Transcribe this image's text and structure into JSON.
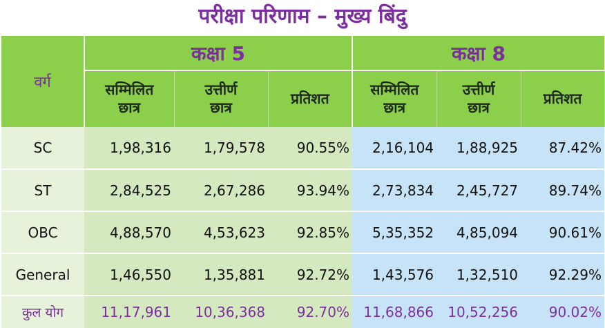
{
  "title": "परीक्षा परिणाम – मुख्य बिंदु",
  "header": {
    "category_label": "वर्ग",
    "class5_label": "कक्षा 5",
    "class8_label": "कक्षा 8",
    "col_appeared_line1": "सम्मिलित",
    "col_appeared_line2": "छात्र",
    "col_passed_line1": "उत्तीर्ण",
    "col_passed_line2": "छात्र",
    "col_percent": "प्रतिशत"
  },
  "rows": [
    {
      "category": "SC",
      "c5_appeared": "1,98,316",
      "c5_passed": "1,79,578",
      "c5_percent": "90.55%",
      "c8_appeared": "2,16,104",
      "c8_passed": "1,88,925",
      "c8_percent": "87.42%"
    },
    {
      "category": "ST",
      "c5_appeared": "2,84,525",
      "c5_passed": "2,67,286",
      "c5_percent": "93.94%",
      "c8_appeared": "2,73,834",
      "c8_passed": "2,45,727",
      "c8_percent": "89.74%"
    },
    {
      "category": "OBC",
      "c5_appeared": "4,88,570",
      "c5_passed": "4,53,623",
      "c5_percent": "92.85%",
      "c8_appeared": "5,35,352",
      "c8_passed": "4,85,094",
      "c8_percent": "90.61%"
    },
    {
      "category": "General",
      "c5_appeared": "1,46,550",
      "c5_passed": "1,35,881",
      "c5_percent": "92.72%",
      "c8_appeared": "1,43,576",
      "c8_passed": "1,32,510",
      "c8_percent": "92.29%"
    }
  ],
  "total": {
    "category": "कुल योग",
    "c5_appeared": "11,17,961",
    "c5_passed": "10,36,368",
    "c5_percent": "92.70%",
    "c8_appeared": "11,68,866",
    "c8_passed": "10,52,256",
    "c8_percent": "90.02%"
  }
}
